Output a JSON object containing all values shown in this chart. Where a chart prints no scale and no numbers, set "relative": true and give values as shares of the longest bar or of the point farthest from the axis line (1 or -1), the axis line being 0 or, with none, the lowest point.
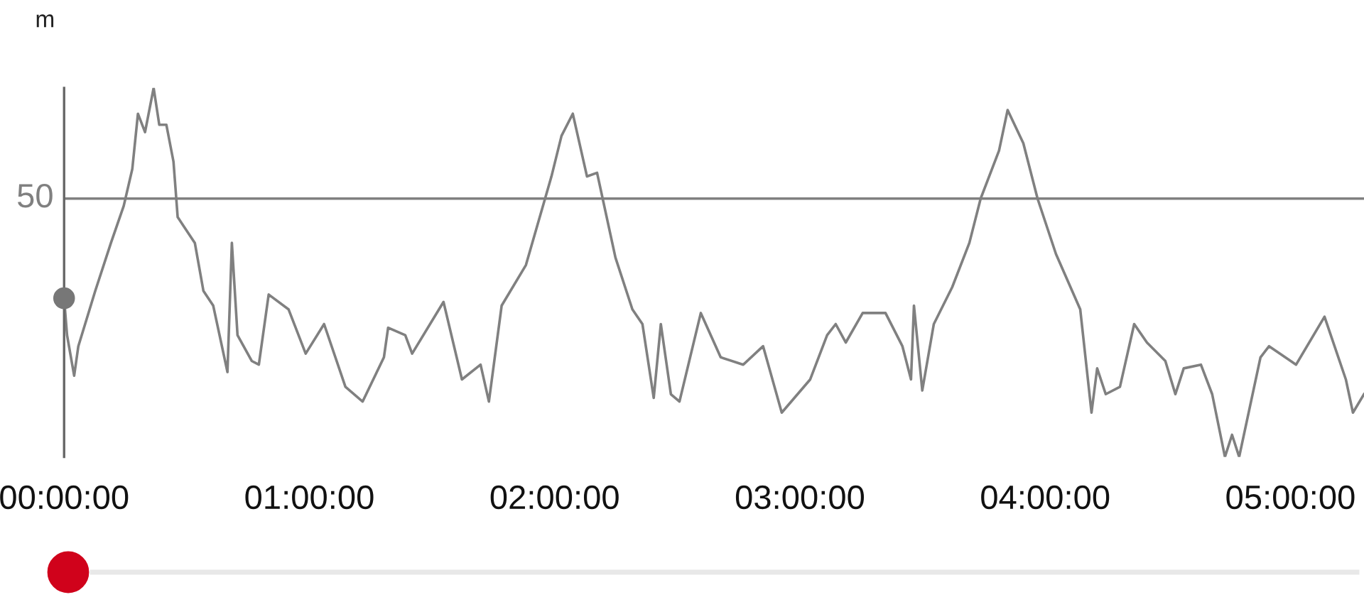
{
  "chart_data": {
    "type": "line",
    "ylabel": "m",
    "relative": true,
    "marker": "none",
    "line_style": "solid",
    "xlim": [
      0,
      5.3
    ],
    "xticks": [
      {
        "value": 0,
        "label": "00:00:00"
      },
      {
        "value": 1,
        "label": "01:00:00"
      },
      {
        "value": 2,
        "label": "02:00:00"
      },
      {
        "value": 3,
        "label": "03:00:00"
      },
      {
        "value": 4,
        "label": "04:00:00"
      },
      {
        "value": 5,
        "label": "05:00:00"
      }
    ],
    "ref_lines": [
      {
        "axis": "y",
        "value": 0.7,
        "color": "#808080"
      }
    ],
    "annotations": [
      "50"
    ],
    "series": [
      {
        "color": "#808080",
        "x": [
          0,
          0.012,
          0.041,
          0.058,
          0.127,
          0.191,
          0.243,
          0.278,
          0.301,
          0.33,
          0.365,
          0.388,
          0.417,
          0.446,
          0.463,
          0.533,
          0.568,
          0.608,
          0.666,
          0.684,
          0.707,
          0.765,
          0.794,
          0.834,
          0.915,
          0.985,
          1.06,
          1.147,
          1.217,
          1.304,
          1.321,
          1.391,
          1.419,
          1.547,
          1.622,
          1.698,
          1.732,
          1.784,
          1.883,
          1.987,
          2.028,
          2.074,
          2.132,
          2.173,
          2.248,
          2.317,
          2.358,
          2.404,
          2.433,
          2.474,
          2.509,
          2.596,
          2.677,
          2.769,
          2.85,
          2.926,
          3.042,
          3.111,
          3.146,
          3.187,
          3.256,
          3.349,
          3.418,
          3.453,
          3.465,
          3.499,
          3.546,
          3.621,
          3.691,
          3.737,
          3.812,
          3.847,
          3.911,
          3.969,
          4.044,
          4.143,
          4.189,
          4.212,
          4.247,
          4.305,
          4.363,
          4.415,
          4.49,
          4.531,
          4.565,
          4.635,
          4.681,
          4.733,
          4.762,
          4.791,
          4.878,
          4.913,
          5.023,
          5.139,
          5.226,
          5.255,
          5.3
        ],
        "values": [
          0.43,
          0.33,
          0.22,
          0.3,
          0.45,
          0.58,
          0.68,
          0.78,
          0.93,
          0.88,
          1.0,
          0.9,
          0.9,
          0.8,
          0.65,
          0.58,
          0.45,
          0.41,
          0.23,
          0.58,
          0.33,
          0.26,
          0.25,
          0.44,
          0.4,
          0.28,
          0.36,
          0.19,
          0.15,
          0.27,
          0.35,
          0.33,
          0.28,
          0.42,
          0.21,
          0.25,
          0.15,
          0.41,
          0.52,
          0.76,
          0.87,
          0.93,
          0.76,
          0.77,
          0.54,
          0.4,
          0.36,
          0.16,
          0.36,
          0.17,
          0.15,
          0.39,
          0.27,
          0.25,
          0.3,
          0.12,
          0.21,
          0.33,
          0.36,
          0.31,
          0.39,
          0.39,
          0.3,
          0.21,
          0.41,
          0.18,
          0.36,
          0.46,
          0.58,
          0.7,
          0.83,
          0.94,
          0.85,
          0.7,
          0.55,
          0.4,
          0.12,
          0.24,
          0.17,
          0.19,
          0.36,
          0.31,
          0.26,
          0.17,
          0.24,
          0.25,
          0.17,
          0.0,
          0.06,
          0.0,
          0.27,
          0.3,
          0.25,
          0.38,
          0.21,
          0.12,
          0.17
        ]
      }
    ]
  }
}
